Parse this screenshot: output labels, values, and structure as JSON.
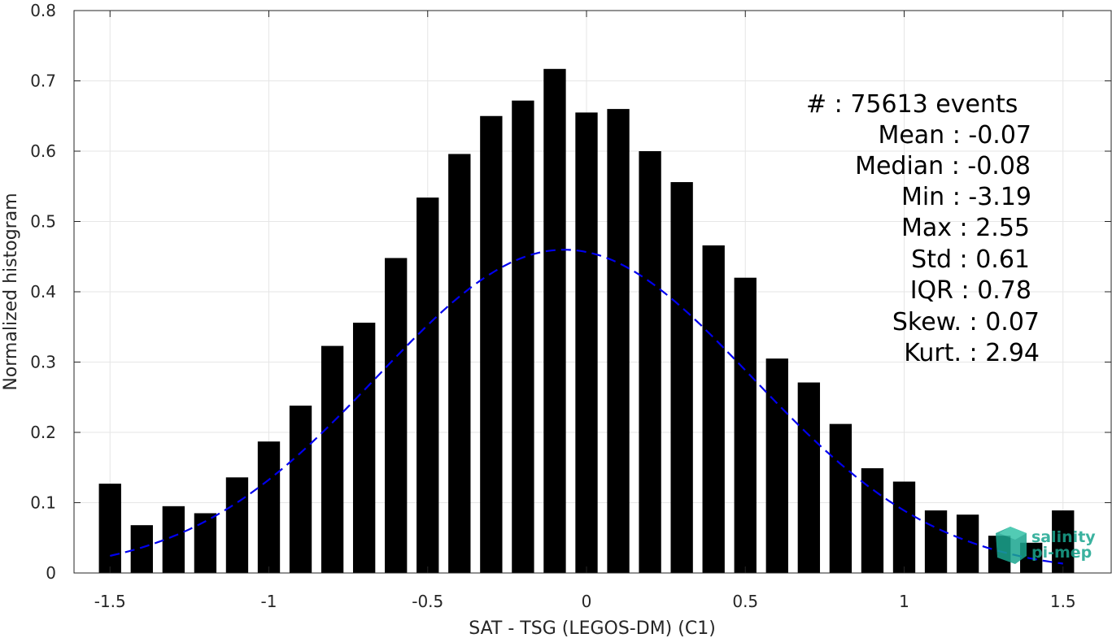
{
  "chart_data": {
    "type": "bar",
    "title": "",
    "xlabel": "SAT - TSG (LEGOS-DM) (C1)",
    "ylabel": "Normalized histogram",
    "xlim": [
      -1.55,
      1.55
    ],
    "ylim": [
      0,
      0.8
    ],
    "x_ticks": [
      "-1.5",
      "-1",
      "-0.5",
      "0",
      "0.5",
      "1",
      "1.5"
    ],
    "y_ticks": [
      "0",
      "0.1",
      "0.2",
      "0.3",
      "0.4",
      "0.5",
      "0.6",
      "0.7",
      "0.8"
    ],
    "grid": true,
    "x": [
      -1.5,
      -1.4,
      -1.3,
      -1.2,
      -1.1,
      -1.0,
      -0.9,
      -0.8,
      -0.7,
      -0.6,
      -0.5,
      -0.4,
      -0.3,
      -0.2,
      -0.1,
      0.0,
      0.1,
      0.2,
      0.3,
      0.4,
      0.5,
      0.6,
      0.7,
      0.8,
      0.9,
      1.0,
      1.1,
      1.2,
      1.3,
      1.4,
      1.5
    ],
    "values": [
      0.127,
      0.068,
      0.095,
      0.085,
      0.136,
      0.187,
      0.238,
      0.323,
      0.356,
      0.448,
      0.534,
      0.596,
      0.65,
      0.672,
      0.717,
      0.655,
      0.66,
      0.6,
      0.556,
      0.466,
      0.42,
      0.305,
      0.271,
      0.212,
      0.149,
      0.13,
      0.089,
      0.083,
      0.053,
      0.043,
      0.089
    ],
    "bar_color": "#000000",
    "fit": {
      "style": "dashed",
      "color": "#0000ee",
      "mean": -0.07,
      "std": 0.59,
      "xlim": [
        -1.5,
        1.5
      ]
    },
    "stats": [
      "#  : 75613 events",
      "Mean : -0.07",
      "Median : -0.08",
      "Min : -3.19",
      "Max : 2.55",
      "Std : 0.61",
      "IQR : 0.78",
      "Skew. : 0.07",
      "Kurt. : 2.94"
    ]
  },
  "logo": {
    "line1": "salinity",
    "line2": "pi-mep",
    "color": "#1aa58f"
  }
}
